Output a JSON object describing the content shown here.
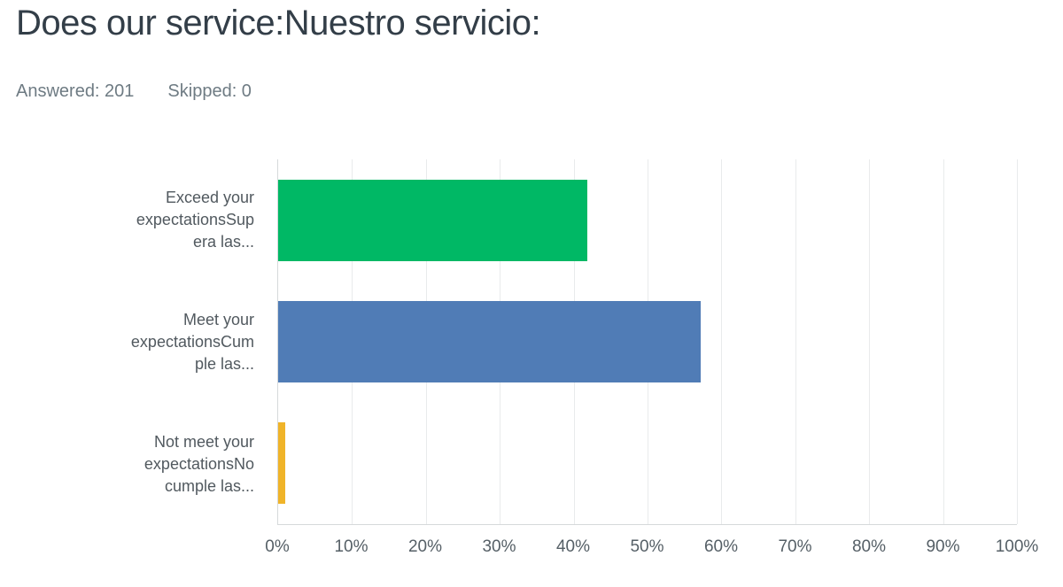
{
  "header": {
    "title": "Does our service:Nuestro servicio:",
    "answered": "Answered: 201",
    "skipped": "Skipped: 0"
  },
  "chart_data": {
    "type": "bar",
    "orientation": "horizontal",
    "title": "Does our service:Nuestro servicio:",
    "categories": [
      "Exceed your expectationsSupera las...",
      "Meet your expectationsCumple las...",
      "Not meet your expectationsNo cumple las..."
    ],
    "category_lines": [
      [
        "Exceed your",
        "expectationsSup",
        "era las..."
      ],
      [
        "Meet your",
        "expectationsCum",
        "ple las..."
      ],
      [
        "Not meet your",
        "expectationsNo",
        "cumple las..."
      ]
    ],
    "values": [
      41.79,
      57.21,
      1.0
    ],
    "bar_colors": [
      "#00b865",
      "#507cb6",
      "#f0b429"
    ],
    "xlabel": "",
    "ylabel": "",
    "xlim": [
      0,
      100
    ],
    "x_ticks": [
      "0%",
      "10%",
      "20%",
      "30%",
      "40%",
      "50%",
      "60%",
      "70%",
      "80%",
      "90%",
      "100%"
    ],
    "x_tick_values": [
      0,
      10,
      20,
      30,
      40,
      50,
      60,
      70,
      80,
      90,
      100
    ],
    "grid": true,
    "legend": false,
    "colors": {
      "axis_line": "#d6d9db",
      "gridline": "#e9ebec",
      "title_text": "#333e48",
      "meta_text": "#6e7b83",
      "label_text": "#51595f",
      "tick_text": "#555f66"
    }
  }
}
